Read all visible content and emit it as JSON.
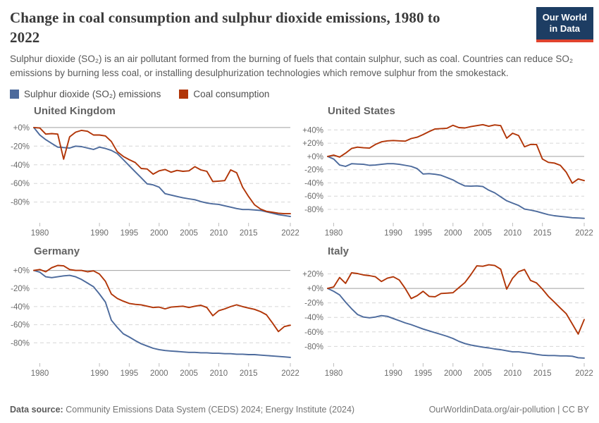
{
  "header": {
    "title_line1": "Change in coal consumption and sulphur dioxide emissions, 1980 to",
    "title_line2": "2022",
    "subtitle": "Sulphur dioxide (SO₂) is an air pollutant formed from the burning of fuels that contain sulphur, such as coal. Countries can reduce SO₂ emissions by burning less coal, or installing desulphurization technologies which remove sulphur from the smokestack.",
    "logo": {
      "line1": "Our World",
      "line2": "in Data"
    }
  },
  "legend": {
    "items": [
      {
        "label": "Sulphur dioxide (SO₂) emissions",
        "color": "#4C6A9C"
      },
      {
        "label": "Coal consumption",
        "color": "#B13507"
      }
    ]
  },
  "chart_data": {
    "type": "line",
    "unit": "%",
    "x_range": [
      1979,
      2022
    ],
    "x_ticks": [
      1980,
      1990,
      1995,
      2000,
      2005,
      2010,
      2015,
      2022
    ],
    "grid": "dashed horizontal, solid zero line",
    "legend_position": "top",
    "panels": [
      {
        "title": "United Kingdom",
        "ylim": [
          -100,
          6
        ],
        "y_ticks": [
          0,
          -20,
          -40,
          -60,
          -80
        ],
        "series": [
          {
            "key": "so2",
            "name": "Sulphur dioxide (SO₂) emissions",
            "color": "#4C6A9C",
            "values": [
              0,
              -8,
              -13,
              -17,
              -21,
              -21.5,
              -22,
              -20,
              -20.5,
              -22,
              -23.5,
              -21,
              -22.5,
              -24.5,
              -28,
              -34.5,
              -41,
              -47.5,
              -54,
              -60.5,
              -61.5,
              -64,
              -71,
              -72.5,
              -74,
              -75.5,
              -76.5,
              -77.5,
              -79.5,
              -81,
              -82,
              -82.5,
              -84,
              -85.5,
              -87,
              -88,
              -88,
              -88.5,
              -89,
              -90.5,
              -92,
              -93.5,
              -94.5,
              -95.5
            ]
          },
          {
            "key": "coal",
            "name": "Coal consumption",
            "color": "#B13507",
            "values": [
              0,
              -0.5,
              -7,
              -6.5,
              -7,
              -34,
              -10,
              -5,
              -3,
              -4,
              -8,
              -8,
              -9,
              -15,
              -26,
              -31,
              -34.5,
              -37.5,
              -44,
              -44.5,
              -50,
              -46.5,
              -45,
              -48,
              -46,
              -47,
              -46.5,
              -42,
              -45.5,
              -47,
              -58,
              -57.5,
              -57,
              -45.5,
              -48.5,
              -64,
              -74,
              -83,
              -87.5,
              -90,
              -91,
              -92,
              -92.5,
              -92.5
            ]
          }
        ]
      },
      {
        "title": "United States",
        "ylim": [
          -97,
          52
        ],
        "y_ticks": [
          40,
          20,
          0,
          -20,
          -40,
          -60,
          -80
        ],
        "series": [
          {
            "key": "so2",
            "name": "Sulphur dioxide (SO₂) emissions",
            "color": "#4C6A9C",
            "values": [
              0,
              -4,
              -13,
              -15,
              -11,
              -11.5,
              -12,
              -13.5,
              -13,
              -12,
              -11,
              -11,
              -12,
              -13.5,
              -15,
              -18.5,
              -26.5,
              -26,
              -27,
              -28.5,
              -32,
              -35.5,
              -40.5,
              -44.5,
              -45,
              -44.5,
              -45.5,
              -51,
              -55,
              -61,
              -67,
              -70.5,
              -74,
              -79.5,
              -81,
              -83,
              -85.5,
              -88,
              -89.5,
              -90.5,
              -91.5,
              -92.5,
              -93,
              -93.5
            ]
          },
          {
            "key": "coal",
            "name": "Coal consumption",
            "color": "#B13507",
            "values": [
              0,
              2,
              -1,
              5,
              12,
              14,
              13,
              12.5,
              18,
              22,
              23.5,
              24,
              23.5,
              23,
              27,
              29,
              33,
              37.5,
              41.5,
              42,
              42.5,
              47,
              43.5,
              43,
              45,
              46.5,
              48,
              45.5,
              47.5,
              46.5,
              27.5,
              35,
              31.5,
              14.5,
              18,
              18,
              -4,
              -9,
              -10,
              -13.5,
              -24,
              -40.5,
              -34,
              -36.5
            ]
          }
        ]
      },
      {
        "title": "Germany",
        "ylim": [
          -100,
          9
        ],
        "y_ticks": [
          0,
          -20,
          -40,
          -60,
          -80
        ],
        "series": [
          {
            "key": "so2",
            "name": "Sulphur dioxide (SO₂) emissions",
            "color": "#4C6A9C",
            "values": [
              0,
              -2,
              -7,
              -8,
              -7,
              -6,
              -5.5,
              -7,
              -10,
              -14,
              -18,
              -26,
              -35,
              -55,
              -63,
              -70,
              -73.5,
              -77.5,
              -81,
              -83.5,
              -86,
              -87.5,
              -88.5,
              -89,
              -89.5,
              -90,
              -90.5,
              -90.5,
              -91,
              -91,
              -91.5,
              -91.5,
              -92,
              -92,
              -92.5,
              -92.5,
              -93,
              -93,
              -93.5,
              -94,
              -94.5,
              -95,
              -95.5,
              -96
            ]
          },
          {
            "key": "coal",
            "name": "Coal consumption",
            "color": "#B13507",
            "values": [
              0,
              1,
              -1.5,
              3,
              5.5,
              5,
              1,
              0,
              0,
              -1.5,
              -0.5,
              -4,
              -12,
              -26,
              -31,
              -34,
              -36.5,
              -37.5,
              -38,
              -39.5,
              -41,
              -40.5,
              -42.5,
              -40.5,
              -40,
              -39.5,
              -41,
              -39.5,
              -38.5,
              -41,
              -50,
              -44.5,
              -42.5,
              -40,
              -38,
              -40,
              -41.5,
              -43,
              -45.5,
              -49,
              -58,
              -67.5,
              -62,
              -60.5
            ]
          }
        ]
      },
      {
        "title": "Italy",
        "ylim": [
          -100,
          36
        ],
        "y_ticks": [
          20,
          0,
          -20,
          -40,
          -60,
          -80
        ],
        "series": [
          {
            "key": "so2",
            "name": "Sulphur dioxide (SO₂) emissions",
            "color": "#4C6A9C",
            "values": [
              0,
              -4,
              -9,
              -19,
              -28,
              -36,
              -39.5,
              -40.5,
              -39.5,
              -37.5,
              -38.5,
              -41.5,
              -44.5,
              -47.5,
              -50,
              -53,
              -56,
              -58.5,
              -61,
              -63.5,
              -66,
              -69,
              -73,
              -76,
              -78,
              -79.5,
              -81,
              -82,
              -83.5,
              -84.5,
              -86,
              -87.5,
              -87.5,
              -88.5,
              -89.5,
              -91,
              -92,
              -92.5,
              -92.5,
              -93,
              -93,
              -93.5,
              -95.5,
              -96
            ]
          },
          {
            "key": "coal",
            "name": "Coal consumption",
            "color": "#B13507",
            "values": [
              0,
              2,
              15,
              7,
              21.5,
              20.5,
              18.5,
              17.5,
              16,
              9.5,
              14,
              16,
              11.5,
              0,
              -14,
              -10,
              -4,
              -11,
              -11.5,
              -7,
              -6.5,
              -6,
              1,
              8,
              19,
              31,
              30.5,
              32.5,
              31.5,
              26.5,
              -1,
              14,
              23,
              26,
              11,
              7.5,
              -1,
              -11,
              -19,
              -27,
              -35,
              -49,
              -63,
              -43
            ]
          }
        ]
      }
    ]
  },
  "footer": {
    "source_label": "Data source:",
    "source_text": "Community Emissions Data System (CEDS) 2024; Energy Institute (2024)",
    "note": "OurWorldinData.org/air-pollution | CC BY"
  }
}
